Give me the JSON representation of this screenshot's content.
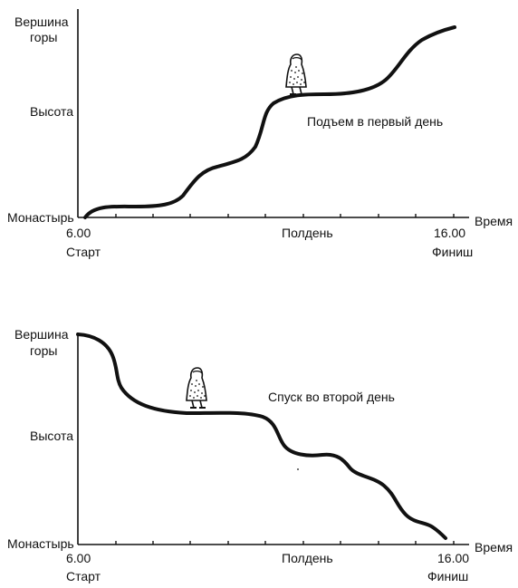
{
  "charts": [
    {
      "id": "ascent",
      "y_labels": {
        "top_line1": "Вершина",
        "top_line2": "горы",
        "middle": "Высота",
        "bottom": "Монастырь"
      },
      "x_axis_label": "Время",
      "x_labels": {
        "start_time": "6.00",
        "start_word": "Старт",
        "noon": "Полдень",
        "end_time": "16.00",
        "end_word": "Финиш"
      },
      "caption": "Подъем в первый день"
    },
    {
      "id": "descent",
      "y_labels": {
        "top_line1": "Вершина",
        "top_line2": "горы",
        "middle": "Высота",
        "bottom": "Монастырь"
      },
      "x_axis_label": "Время",
      "x_labels": {
        "start_time": "6.00",
        "start_word": "Старт",
        "noon": "Полдень",
        "end_time": "16.00",
        "end_word": "Финиш"
      },
      "caption": "Спуск во второй день"
    }
  ],
  "icons": {
    "traveler": "monk-figure-icon"
  }
}
